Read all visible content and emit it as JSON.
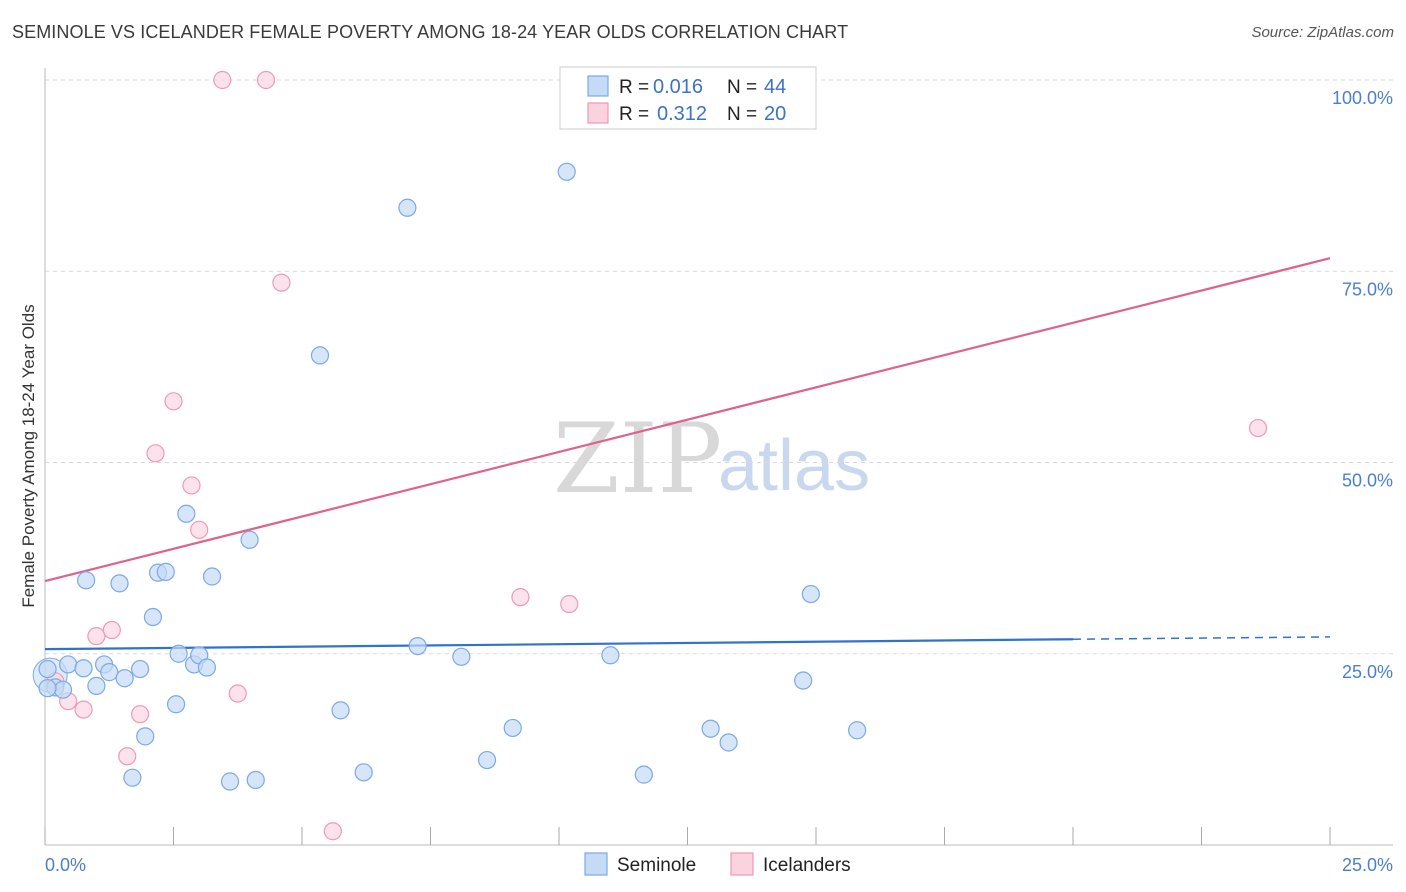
{
  "header": {
    "title": "SEMINOLE VS ICELANDER FEMALE POVERTY AMONG 18-24 YEAR OLDS CORRELATION CHART",
    "source": "Source: ZipAtlas.com"
  },
  "watermark": {
    "zip": "ZIP",
    "atlas": "atlas"
  },
  "colors": {
    "seminole": "#7aaae6",
    "seminole_fill": "#c5daf5",
    "seminole_line": "#2f73cc",
    "icelanders": "#ee9ab4",
    "icelanders_fill": "#fbd3df",
    "icelanders_line": "#e0628a",
    "grid": "#d9d9d9",
    "tick_text": "#4a7fd0"
  },
  "legend": {
    "rows": [
      {
        "r_label": "R = ",
        "r_value": "0.016",
        "n_label": "N = ",
        "n_value": "44"
      },
      {
        "r_label": "R = ",
        "r_value": "0.312",
        "n_label": "N = ",
        "n_value": "20"
      }
    ]
  },
  "bottom_legend": {
    "items": [
      "Seminole",
      "Icelanders"
    ]
  },
  "chart_data": {
    "type": "scatter",
    "title": "SEMINOLE VS ICELANDER FEMALE POVERTY AMONG 18-24 YEAR OLDS CORRELATION CHART",
    "xlabel": "",
    "ylabel": "Female Poverty Among 18-24 Year Olds",
    "xlim": [
      0,
      25
    ],
    "ylim": [
      0,
      100
    ],
    "x_tick_labels": [
      "0.0%",
      "25.0%"
    ],
    "y_tick_labels": [
      "25.0%",
      "50.0%",
      "75.0%",
      "100.0%"
    ],
    "y_ticks": [
      25,
      50,
      75,
      100
    ],
    "grid": true,
    "legend_position": "top-center",
    "series": [
      {
        "name": "Seminole",
        "r": 0.016,
        "n": 44,
        "trend": {
          "x0": 0,
          "y0": 25.6,
          "x1": 20,
          "y1": 26.9,
          "dashed_to_x": 25,
          "dashed_to_y": 27.2
        },
        "points": [
          [
            0.05,
            23.0
          ],
          [
            0.2,
            20.6
          ],
          [
            0.35,
            20.3
          ],
          [
            0.45,
            23.6
          ],
          [
            0.75,
            23.1
          ],
          [
            0.8,
            34.6
          ],
          [
            1.0,
            20.8
          ],
          [
            1.15,
            23.6
          ],
          [
            1.25,
            22.6
          ],
          [
            1.45,
            34.2
          ],
          [
            1.55,
            21.8
          ],
          [
            1.7,
            8.8
          ],
          [
            1.85,
            23.0
          ],
          [
            1.95,
            14.2
          ],
          [
            2.1,
            29.8
          ],
          [
            2.2,
            35.6
          ],
          [
            2.35,
            35.7
          ],
          [
            2.55,
            18.4
          ],
          [
            2.6,
            25.0
          ],
          [
            2.75,
            43.3
          ],
          [
            2.9,
            23.6
          ],
          [
            3.0,
            24.8
          ],
          [
            3.15,
            23.2
          ],
          [
            3.25,
            35.1
          ],
          [
            3.6,
            8.3
          ],
          [
            3.98,
            39.9
          ],
          [
            4.1,
            8.5
          ],
          [
            5.35,
            64.0
          ],
          [
            5.75,
            17.6
          ],
          [
            6.2,
            9.5
          ],
          [
            7.05,
            83.3
          ],
          [
            7.25,
            26.0
          ],
          [
            8.1,
            24.6
          ],
          [
            8.6,
            11.1
          ],
          [
            9.1,
            15.3
          ],
          [
            10.15,
            88.0
          ],
          [
            11.0,
            24.8
          ],
          [
            11.65,
            9.2
          ],
          [
            12.95,
            15.2
          ],
          [
            13.3,
            13.4
          ],
          [
            14.75,
            21.5
          ],
          [
            14.9,
            32.8
          ],
          [
            15.8,
            15.0
          ],
          [
            0.05,
            20.5
          ]
        ]
      },
      {
        "name": "Icelanders",
        "r": 0.312,
        "n": 20,
        "trend": {
          "x0": 0,
          "y0": 34.5,
          "x1": 25,
          "y1": 76.7
        },
        "points": [
          [
            0.2,
            21.4
          ],
          [
            0.45,
            18.8
          ],
          [
            0.75,
            17.7
          ],
          [
            1.0,
            27.3
          ],
          [
            1.3,
            28.1
          ],
          [
            1.6,
            11.6
          ],
          [
            1.85,
            17.1
          ],
          [
            2.15,
            51.2
          ],
          [
            2.5,
            58.0
          ],
          [
            2.85,
            47.0
          ],
          [
            3.0,
            41.2
          ],
          [
            3.45,
            100.0
          ],
          [
            3.75,
            19.8
          ],
          [
            4.3,
            100.0
          ],
          [
            4.6,
            73.5
          ],
          [
            5.6,
            1.8
          ],
          [
            9.25,
            32.4
          ],
          [
            10.2,
            31.5
          ],
          [
            13.25,
            100.0
          ],
          [
            23.6,
            54.5
          ]
        ]
      }
    ]
  }
}
